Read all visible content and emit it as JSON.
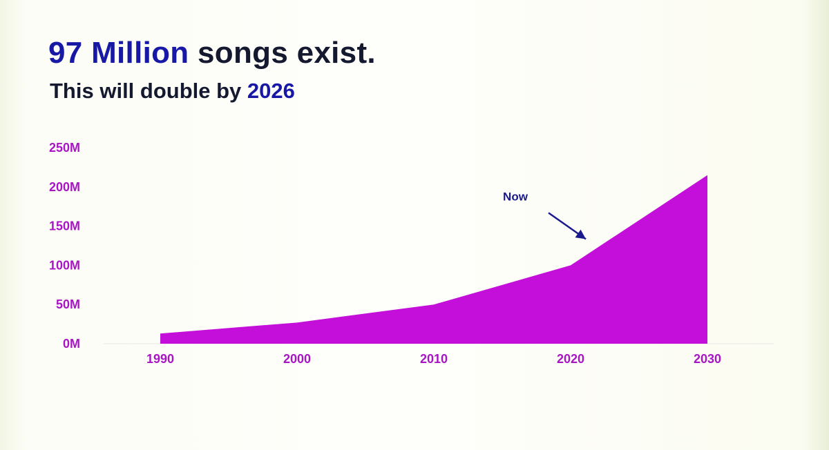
{
  "slide": {
    "headline_accent": "97 Million",
    "headline_rest": "songs exist.",
    "subline_text": "This will double by",
    "subline_accent": "2026"
  },
  "colors": {
    "accent_blue": "#1718a6",
    "dark_text": "#14192f",
    "area_fill": "#c30fd9",
    "tick_color": "#a815c4",
    "annotation": "#1a1a8c"
  },
  "chart_data": {
    "type": "area",
    "x": [
      1990,
      2000,
      2010,
      2020,
      2030
    ],
    "values": [
      13000000,
      27000000,
      50000000,
      100000000,
      215000000
    ],
    "ylim": [
      0,
      250000000
    ],
    "xlim": [
      1990,
      2030
    ],
    "yticks": [
      {
        "value": 0,
        "label": "0M"
      },
      {
        "value": 50000000,
        "label": "50M"
      },
      {
        "value": 100000000,
        "label": "100M"
      },
      {
        "value": 150000000,
        "label": "150M"
      },
      {
        "value": 200000000,
        "label": "200M"
      },
      {
        "value": 250000000,
        "label": "250M"
      }
    ],
    "xticks": [
      {
        "value": 1990,
        "label": "1990"
      },
      {
        "value": 2000,
        "label": "2000"
      },
      {
        "value": 2010,
        "label": "2010"
      },
      {
        "value": 2020,
        "label": "2020"
      },
      {
        "value": 2030,
        "label": "2030"
      }
    ],
    "annotation": {
      "text": "Now",
      "x": 2020,
      "y": 100000000
    },
    "grid": false,
    "legend": "none"
  }
}
